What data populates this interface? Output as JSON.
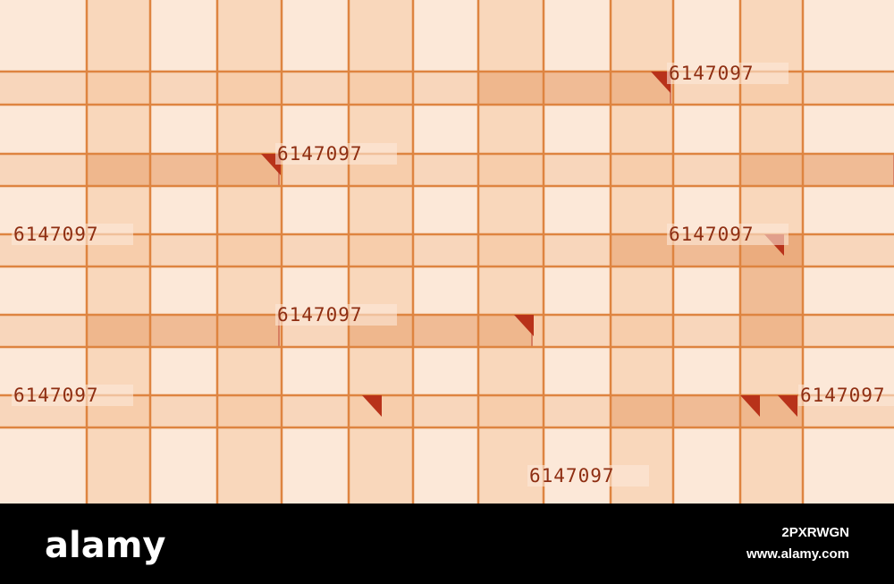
{
  "image": {
    "labels": [
      "6147097",
      "6147097",
      "6147097",
      "6147097",
      "6147097",
      "6147097",
      "6147097",
      "6147097"
    ]
  },
  "footer": {
    "logo": "alamy",
    "image_id": "2PXRWGN",
    "url": "www.alamy.com"
  }
}
